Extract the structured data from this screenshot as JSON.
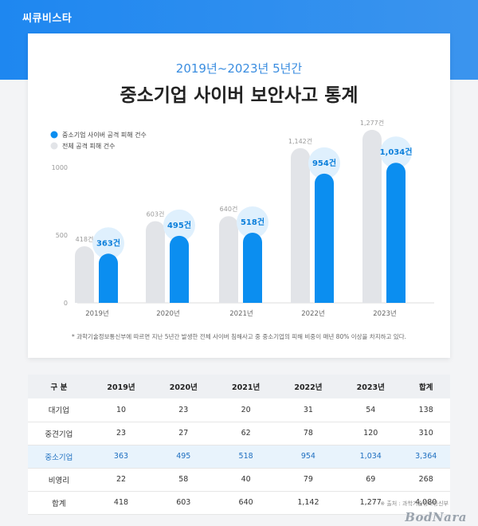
{
  "header": {
    "brand": "씨큐비스타"
  },
  "card": {
    "subtitle": "2019년~2023년 5년간",
    "title": "중소기업 사이버 보안사고 통계",
    "footnote": "* 과학기술정보통신부에 따르면 지난 5년간 발생한 전체 사이버 침해사고 중 중소기업의 피해 비중이 매년 80% 이상을 차지하고 있다."
  },
  "chart_data": {
    "type": "bar",
    "categories": [
      "2019년",
      "2020년",
      "2021년",
      "2022년",
      "2023년"
    ],
    "series": [
      {
        "name": "전체 공격 피해 건수",
        "values": [
          418,
          603,
          640,
          1142,
          1277
        ],
        "labels": [
          "418건",
          "603건",
          "640건",
          "1,142건",
          "1,277건"
        ],
        "color": "#e2e4e8"
      },
      {
        "name": "중소기업 사이버 공격 피해 건수",
        "values": [
          363,
          495,
          518,
          954,
          1034
        ],
        "labels": [
          "363건",
          "495건",
          "518건",
          "954건",
          "1,034건"
        ],
        "color": "#0b8ef0"
      }
    ],
    "yticks": [
      0,
      500,
      1000
    ],
    "ylim": [
      0,
      1300
    ],
    "legend": "top-left",
    "grid": false
  },
  "table": {
    "headers": [
      "구 분",
      "2019년",
      "2020년",
      "2021년",
      "2022년",
      "2023년",
      "합계"
    ],
    "rows": [
      [
        "대기업",
        "10",
        "23",
        "20",
        "31",
        "54",
        "138"
      ],
      [
        "중견기업",
        "23",
        "27",
        "62",
        "78",
        "120",
        "310"
      ],
      [
        "중소기업",
        "363",
        "495",
        "518",
        "954",
        "1,034",
        "3,364"
      ],
      [
        "비영리",
        "22",
        "58",
        "40",
        "79",
        "69",
        "268"
      ],
      [
        "합계",
        "418",
        "603",
        "640",
        "1,142",
        "1,277",
        "4,080"
      ]
    ],
    "highlight_row": 2
  },
  "source": "※ 출처 : 과학기술정보통신부",
  "watermark": "BodNara",
  "colors": {
    "accent": "#0b8ef0",
    "header_bg": "#1e87f0",
    "highlight_row_bg": "#e8f3fc"
  }
}
